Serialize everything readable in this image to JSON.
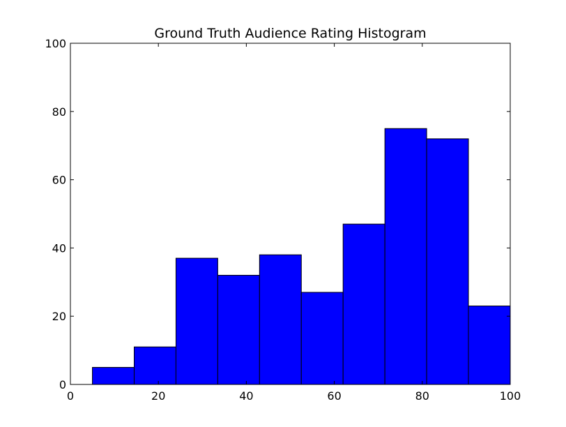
{
  "chart_data": {
    "type": "bar",
    "title": "Ground Truth Audience Rating Histogram",
    "xlabel": "",
    "ylabel": "",
    "xlim": [
      0,
      100
    ],
    "ylim": [
      0,
      100
    ],
    "xticks": [
      0,
      20,
      40,
      60,
      80,
      100
    ],
    "yticks": [
      0,
      20,
      40,
      60,
      80,
      100
    ],
    "grid": false,
    "bins": [
      {
        "x0": 5,
        "x1": 14.5,
        "count": 5
      },
      {
        "x0": 14.5,
        "x1": 24,
        "count": 11
      },
      {
        "x0": 24,
        "x1": 33.5,
        "count": 37
      },
      {
        "x0": 33.5,
        "x1": 43,
        "count": 32
      },
      {
        "x0": 43,
        "x1": 52.5,
        "count": 38
      },
      {
        "x0": 52.5,
        "x1": 62,
        "count": 27
      },
      {
        "x0": 62,
        "x1": 71.5,
        "count": 47
      },
      {
        "x0": 71.5,
        "x1": 81,
        "count": 75
      },
      {
        "x0": 81,
        "x1": 90.5,
        "count": 72
      },
      {
        "x0": 90.5,
        "x1": 100,
        "count": 23
      }
    ],
    "colors": {
      "bar_fill": "#0000ff",
      "bar_edge": "#000000"
    }
  }
}
